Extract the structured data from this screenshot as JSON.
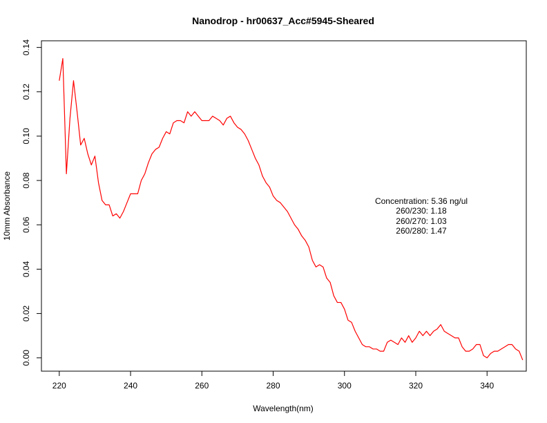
{
  "chart_data": {
    "type": "line",
    "title": "Nanodrop - hr00637_Acc#5945-Sheared",
    "xlabel": "Wavelength(nm)",
    "ylabel": "10mm Absorbance",
    "x_ticks": [
      220,
      240,
      260,
      280,
      300,
      320,
      340
    ],
    "y_ticks": [
      0.0,
      0.02,
      0.04,
      0.06,
      0.08,
      0.1,
      0.12,
      0.14
    ],
    "x_tick_labels": [
      "220",
      "240",
      "260",
      "280",
      "300",
      "320",
      "340"
    ],
    "y_tick_labels": [
      "0.00",
      "0.02",
      "0.04",
      "0.06",
      "0.08",
      "0.10",
      "0.12",
      "0.14"
    ],
    "xlim": [
      215,
      351
    ],
    "ylim": [
      -0.006,
      0.143
    ],
    "grid": false,
    "series": [
      {
        "color": "#ff0000",
        "x": [
          220,
          221,
          222,
          223,
          224,
          225,
          226,
          227,
          228,
          229,
          230,
          231,
          232,
          233,
          234,
          235,
          236,
          237,
          238,
          239,
          240,
          241,
          242,
          243,
          244,
          245,
          246,
          247,
          248,
          249,
          250,
          251,
          252,
          253,
          254,
          255,
          256,
          257,
          258,
          259,
          260,
          261,
          262,
          263,
          264,
          265,
          266,
          267,
          268,
          269,
          270,
          271,
          272,
          273,
          274,
          275,
          276,
          277,
          278,
          279,
          280,
          281,
          282,
          283,
          284,
          285,
          286,
          287,
          288,
          289,
          290,
          291,
          292,
          293,
          294,
          295,
          296,
          297,
          298,
          299,
          300,
          301,
          302,
          303,
          304,
          305,
          306,
          307,
          308,
          309,
          310,
          311,
          312,
          313,
          314,
          315,
          316,
          317,
          318,
          319,
          320,
          321,
          322,
          323,
          324,
          325,
          326,
          327,
          328,
          329,
          330,
          331,
          332,
          333,
          334,
          335,
          336,
          337,
          338,
          339,
          340,
          341,
          342,
          343,
          344,
          345,
          346,
          347,
          348,
          349,
          350
        ],
        "y": [
          0.125,
          0.135,
          0.083,
          0.108,
          0.125,
          0.111,
          0.096,
          0.099,
          0.092,
          0.087,
          0.091,
          0.079,
          0.071,
          0.069,
          0.069,
          0.064,
          0.065,
          0.063,
          0.066,
          0.07,
          0.074,
          0.074,
          0.074,
          0.08,
          0.083,
          0.088,
          0.092,
          0.094,
          0.095,
          0.099,
          0.102,
          0.101,
          0.106,
          0.107,
          0.107,
          0.106,
          0.111,
          0.109,
          0.111,
          0.109,
          0.107,
          0.107,
          0.107,
          0.109,
          0.108,
          0.107,
          0.105,
          0.108,
          0.109,
          0.106,
          0.104,
          0.103,
          0.101,
          0.098,
          0.094,
          0.09,
          0.087,
          0.082,
          0.079,
          0.077,
          0.073,
          0.071,
          0.07,
          0.068,
          0.066,
          0.063,
          0.06,
          0.058,
          0.055,
          0.053,
          0.05,
          0.044,
          0.041,
          0.042,
          0.041,
          0.036,
          0.034,
          0.028,
          0.025,
          0.025,
          0.022,
          0.017,
          0.016,
          0.012,
          0.009,
          0.006,
          0.005,
          0.005,
          0.004,
          0.004,
          0.003,
          0.003,
          0.007,
          0.008,
          0.007,
          0.006,
          0.009,
          0.007,
          0.01,
          0.007,
          0.009,
          0.012,
          0.01,
          0.012,
          0.01,
          0.012,
          0.013,
          0.015,
          0.012,
          0.011,
          0.01,
          0.009,
          0.009,
          0.005,
          0.003,
          0.003,
          0.004,
          0.006,
          0.006,
          0.001,
          0.0,
          0.002,
          0.003,
          0.003,
          0.004,
          0.005,
          0.006,
          0.006,
          0.004,
          0.003,
          -0.001
        ]
      }
    ],
    "annotations": [
      "Concentration: 5.36 ng/ul",
      "260/230: 1.18",
      "260/270: 1.03",
      "260/280: 1.47"
    ]
  }
}
